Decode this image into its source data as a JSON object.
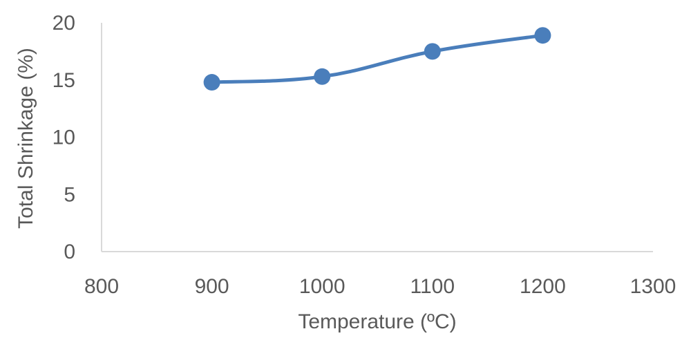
{
  "chart_data": {
    "type": "line",
    "title": "",
    "xlabel": "Temperature (ºC)",
    "ylabel": "Total Shrinkage (%)",
    "xlim": [
      800,
      1300
    ],
    "ylim": [
      0,
      20
    ],
    "x_ticks": [
      800,
      900,
      1000,
      1100,
      1200,
      1300
    ],
    "y_ticks": [
      0,
      5,
      10,
      15,
      20
    ],
    "grid": false,
    "series": [
      {
        "x": [
          900,
          1000,
          1100,
          1200
        ],
        "y": [
          14.8,
          15.3,
          17.5,
          18.9
        ],
        "color": "#4a7ebb",
        "smooth": true,
        "marker": "circle"
      }
    ]
  }
}
